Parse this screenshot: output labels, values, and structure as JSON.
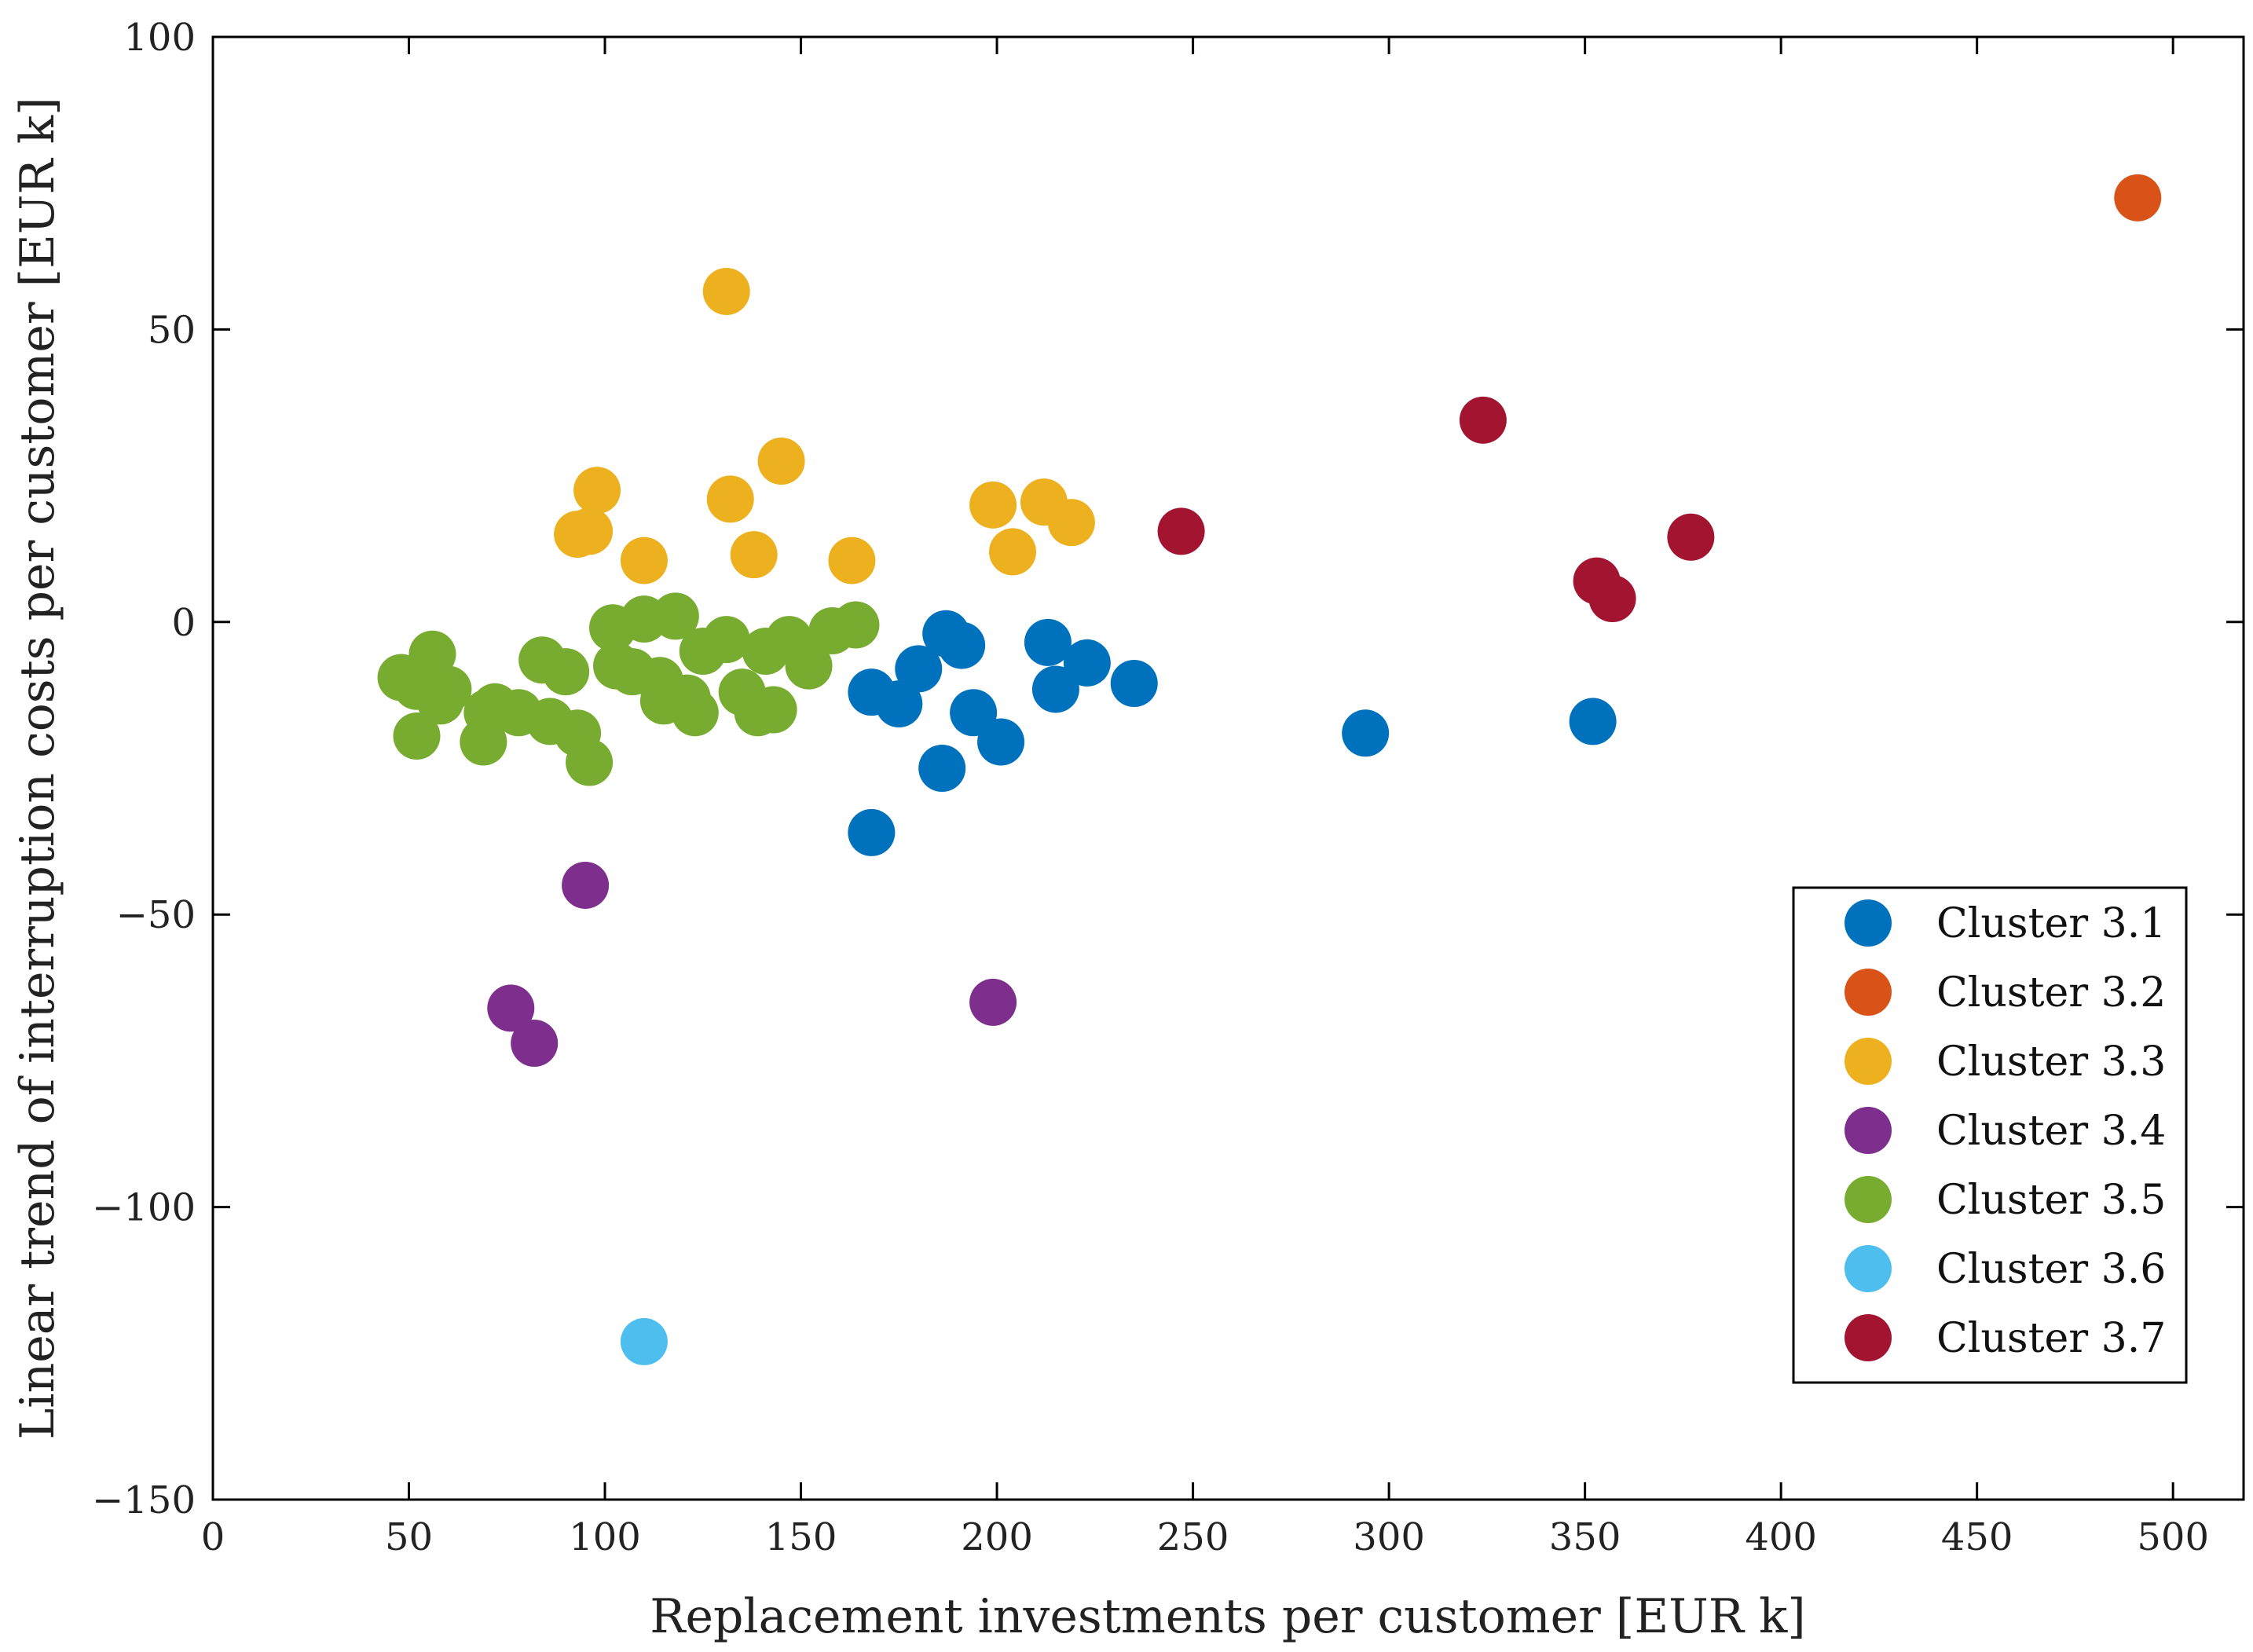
{
  "chart_data": {
    "type": "scatter",
    "title": "",
    "xlabel": "Replacement investments per customer [EUR k]",
    "ylabel": "Linear trend of interruption costs per customer [EUR k]",
    "xlim": [
      0,
      518
    ],
    "ylim": [
      -150,
      100
    ],
    "xticks": [
      0,
      50,
      100,
      150,
      200,
      250,
      300,
      350,
      400,
      450,
      500
    ],
    "yticks": [
      -150,
      -100,
      -50,
      0,
      50,
      100
    ],
    "xtick_labels": [
      "0",
      "50",
      "100",
      "150",
      "200",
      "250",
      "300",
      "350",
      "400",
      "450",
      "500"
    ],
    "ytick_labels": [
      "−150",
      "−100",
      "−50",
      "0",
      "50",
      "100"
    ],
    "grid": false,
    "legend_position": "lower-right",
    "series": [
      {
        "name": "Cluster 3.1",
        "color": "#0072BD",
        "points": [
          [
            168,
            -12
          ],
          [
            175,
            -14
          ],
          [
            180,
            -8
          ],
          [
            187,
            -2
          ],
          [
            191,
            -4
          ],
          [
            194,
            -15.5
          ],
          [
            186,
            -25
          ],
          [
            201,
            -20.5
          ],
          [
            168,
            -36
          ],
          [
            213,
            -3.5
          ],
          [
            215,
            -11.5
          ],
          [
            223,
            -7
          ],
          [
            235,
            -10.5
          ],
          [
            294,
            -19
          ],
          [
            352,
            -17
          ]
        ]
      },
      {
        "name": "Cluster 3.2",
        "color": "#D95319",
        "points": [
          [
            491,
            72.5
          ]
        ]
      },
      {
        "name": "Cluster 3.3",
        "color": "#EDB120",
        "points": [
          [
            131,
            56.5
          ],
          [
            145,
            27.5
          ],
          [
            98,
            22.5
          ],
          [
            132,
            21
          ],
          [
            93,
            15
          ],
          [
            96,
            15.5
          ],
          [
            110,
            10.5
          ],
          [
            138,
            11.5
          ],
          [
            163,
            10.5
          ],
          [
            199,
            20
          ],
          [
            212,
            20.5
          ],
          [
            219,
            17
          ],
          [
            204,
            12
          ]
        ]
      },
      {
        "name": "Cluster 3.4",
        "color": "#7E2F8E",
        "points": [
          [
            95,
            -45
          ],
          [
            76,
            -66
          ],
          [
            82,
            -72
          ],
          [
            199,
            -65
          ]
        ]
      },
      {
        "name": "Cluster 3.5",
        "color": "#77AC30",
        "points": [
          [
            48,
            -9.5
          ],
          [
            52,
            -11
          ],
          [
            54,
            -9
          ],
          [
            56,
            -5.5
          ],
          [
            58,
            -13.5
          ],
          [
            60,
            -11.5
          ],
          [
            52,
            -19.5
          ],
          [
            70,
            -15.5
          ],
          [
            72,
            -14.5
          ],
          [
            69,
            -20.5
          ],
          [
            78,
            -15.5
          ],
          [
            84,
            -6.5
          ],
          [
            86,
            -17
          ],
          [
            90,
            -8.5
          ],
          [
            93,
            -19
          ],
          [
            96,
            -24
          ],
          [
            102,
            -1
          ],
          [
            103,
            -7.5
          ],
          [
            107,
            -8.5
          ],
          [
            110,
            0.5
          ],
          [
            114,
            -10
          ],
          [
            115,
            -13.5
          ],
          [
            118,
            1
          ],
          [
            121,
            -13
          ],
          [
            123,
            -15.5
          ],
          [
            125,
            -5
          ],
          [
            131,
            -3
          ],
          [
            135,
            -12
          ],
          [
            139,
            -15.5
          ],
          [
            141,
            -5
          ],
          [
            143,
            -15
          ],
          [
            147,
            -3
          ],
          [
            152,
            -7.5
          ],
          [
            158,
            -1.5
          ],
          [
            164,
            -0.5
          ]
        ]
      },
      {
        "name": "Cluster 3.6",
        "color": "#4DBEEE",
        "points": [
          [
            110,
            -123
          ]
        ]
      },
      {
        "name": "Cluster 3.7",
        "color": "#A2142F",
        "points": [
          [
            247,
            15.5
          ],
          [
            324,
            34.5
          ],
          [
            353,
            7
          ],
          [
            357,
            4
          ],
          [
            377,
            14.5
          ]
        ]
      }
    ]
  }
}
